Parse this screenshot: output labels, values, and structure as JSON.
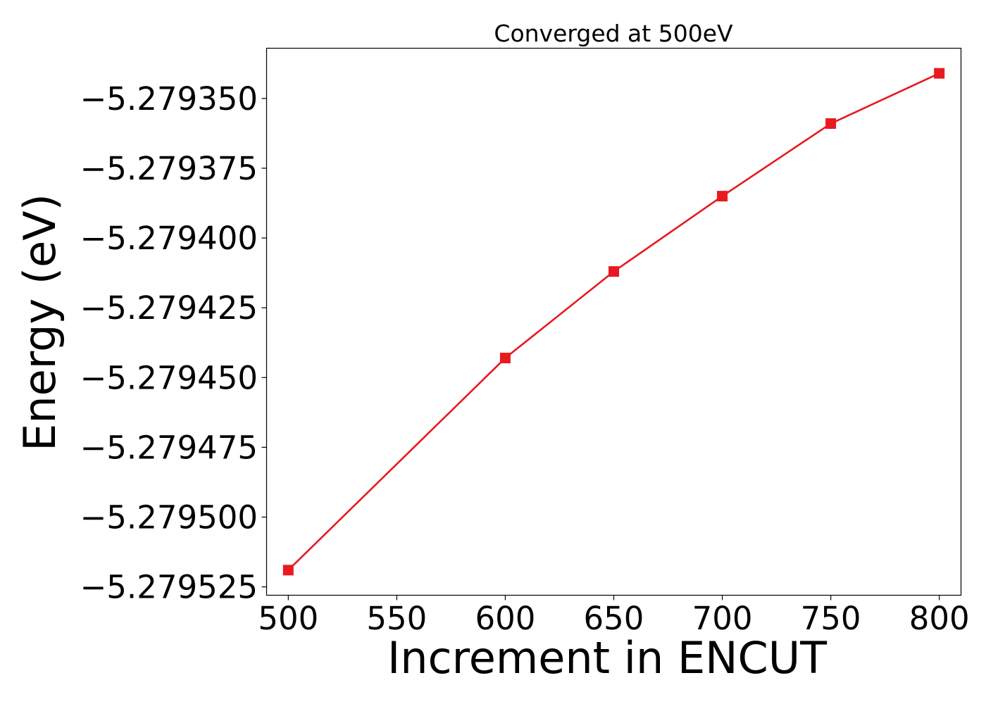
{
  "chart_data": {
    "type": "line",
    "title": "Converged at 500eV",
    "xlabel": "Increment in ENCUT",
    "ylabel": "Energy (eV)",
    "xlim": [
      490,
      810
    ],
    "ylim": [
      -5.279528,
      -5.279332
    ],
    "x_ticks": [
      500,
      550,
      600,
      650,
      700,
      750,
      800
    ],
    "x_tick_labels": [
      "500",
      "550",
      "600",
      "650",
      "700",
      "750",
      "800"
    ],
    "y_ticks": [
      -5.27935,
      -5.279375,
      -5.2794,
      -5.279425,
      -5.27945,
      -5.279475,
      -5.2795,
      -5.279525
    ],
    "y_tick_labels": [
      "−5.279350",
      "−5.279375",
      "−5.279400",
      "−5.279425",
      "−5.279450",
      "−5.279475",
      "−5.279500",
      "−5.279525"
    ],
    "grid": false,
    "legend": false,
    "series": [
      {
        "color": "#e8191f",
        "marker": "square",
        "x": [
          500,
          600,
          650,
          700,
          750,
          800
        ],
        "y": [
          -5.279519,
          -5.279443,
          -5.279412,
          -5.279385,
          -5.279359,
          -5.279341
        ]
      }
    ]
  }
}
